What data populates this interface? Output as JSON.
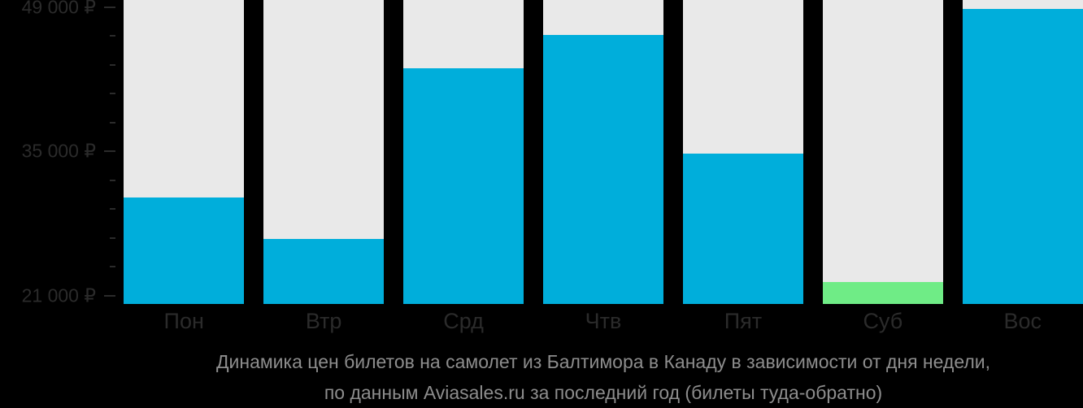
{
  "chart_data": {
    "type": "bar",
    "title_lines": [
      "Динамика цен билетов на самолет из Балтимора в Канаду в зависимости от дня недели,",
      "по данным Aviasales.ru за последний год (билеты туда-обратно)"
    ],
    "categories": [
      "Пон",
      "Втр",
      "Срд",
      "Чтв",
      "Пят",
      "Суб",
      "Вос"
    ],
    "values": [
      30500,
      26500,
      43100,
      46300,
      34800,
      22300,
      48800
    ],
    "bar_colors": [
      "#00AEDB",
      "#00AEDB",
      "#00AEDB",
      "#00AEDB",
      "#00AEDB",
      "#6FEC86",
      "#00AEDB"
    ],
    "column_bg_color": "#E9E9E9",
    "currency": "₽",
    "xlabel": "",
    "ylabel": "",
    "legend": null,
    "grid": false,
    "y_axis": {
      "min": 20200,
      "max": 49700,
      "major_ticks": [
        {
          "value": 49000,
          "label": "49 000 ₽"
        },
        {
          "value": 35000,
          "label": "35 000 ₽"
        },
        {
          "value": 21000,
          "label": "21 000 ₽"
        }
      ],
      "minor_tick_values": [
        46200,
        43400,
        40600,
        37800,
        32200,
        29400,
        26600,
        23800
      ]
    },
    "colors": {
      "background": "#000000",
      "axis_text": "#2B2B2B",
      "title_text": "#8D8D8D"
    }
  }
}
